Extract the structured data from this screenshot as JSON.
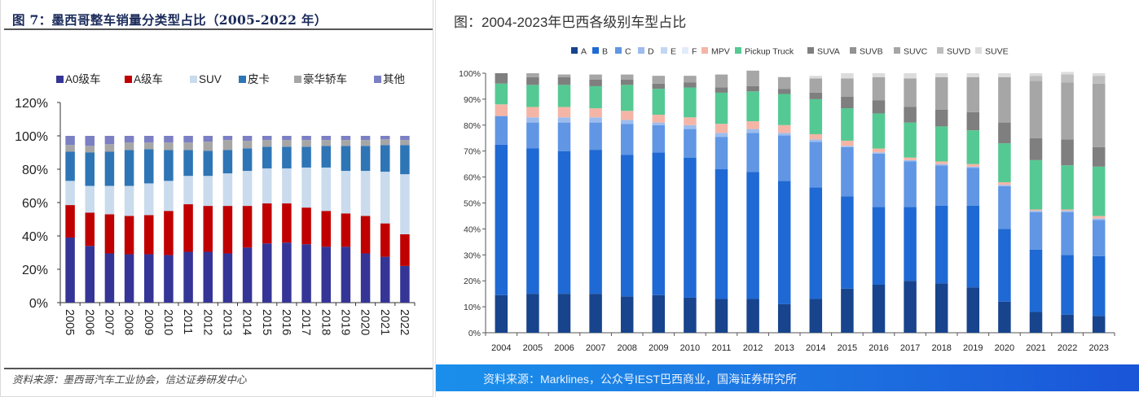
{
  "left_panel": {
    "title": "图 7：墨西哥整车销量分类型占比（2005-2022 年）",
    "source": "资料来源：墨西哥汽车工业协会，信达证券研发中心"
  },
  "right_panel": {
    "title": "图：2004-2023年巴西各级别车型占比",
    "source": "资料来源：Marklines，公众号IEST巴西商业，国海证券研究所"
  },
  "chart_data": [
    {
      "type": "bar",
      "stacked": true,
      "title": "墨西哥整车销量分类型占比（2005-2022 年）",
      "xlabel": "",
      "ylabel": "",
      "ylim": [
        0,
        120
      ],
      "yticks": [
        "0%",
        "20%",
        "40%",
        "60%",
        "80%",
        "100%",
        "120%"
      ],
      "ytick_values": [
        0,
        20,
        40,
        60,
        80,
        100,
        120
      ],
      "legend_position": "top",
      "categories": [
        "2005",
        "2006",
        "2007",
        "2008",
        "2009",
        "2010",
        "2011",
        "2012",
        "2013",
        "2014",
        "2015",
        "2016",
        "2017",
        "2018",
        "2019",
        "2020",
        "2021",
        "2022"
      ],
      "series": [
        {
          "name": "A0级车",
          "color": "#353597",
          "values": [
            39,
            34,
            29.5,
            29,
            29,
            28.5,
            30.5,
            30.5,
            29.5,
            33,
            35.5,
            36,
            35,
            33.5,
            33.5,
            29.5,
            27.5,
            22
          ]
        },
        {
          "name": "A级车",
          "color": "#c00000",
          "values": [
            19.5,
            20,
            23.5,
            23,
            23.5,
            26.5,
            28.5,
            27.5,
            28.5,
            25,
            24,
            23.5,
            22,
            21.5,
            20,
            22.5,
            20,
            19
          ]
        },
        {
          "name": "SUV",
          "color": "#c9dbed",
          "values": [
            14.5,
            16,
            17,
            18,
            19,
            18,
            17,
            18,
            19.5,
            21,
            21,
            21,
            24,
            26,
            25.5,
            27,
            31,
            36
          ]
        },
        {
          "name": "皮卡",
          "color": "#2e75b6",
          "values": [
            17.5,
            20,
            20.5,
            21.5,
            20.5,
            18.5,
            15.5,
            15,
            14,
            13.5,
            13,
            13,
            12.5,
            13,
            15,
            15,
            16,
            17.5
          ]
        },
        {
          "name": "豪华轿车",
          "color": "#a6a6a6",
          "values": [
            4,
            4,
            4.5,
            4.5,
            4,
            4.5,
            4.5,
            5.5,
            6,
            4.5,
            4,
            4,
            4,
            3.5,
            3.5,
            3.5,
            3.5,
            3
          ]
        },
        {
          "name": "其他",
          "color": "#7b7fc4",
          "values": [
            5.5,
            6,
            5,
            4,
            4,
            4,
            4,
            3.5,
            2.5,
            3,
            2.5,
            2.5,
            2.5,
            2.5,
            2.5,
            2.5,
            2,
            2.5
          ]
        }
      ]
    },
    {
      "type": "bar",
      "stacked": true,
      "title": "2004-2023年巴西各级别车型占比",
      "xlabel": "",
      "ylabel": "",
      "ylim": [
        0,
        100
      ],
      "yticks": [
        "0%",
        "10%",
        "20%",
        "30%",
        "40%",
        "50%",
        "60%",
        "70%",
        "80%",
        "90%",
        "100%"
      ],
      "ytick_values": [
        0,
        10,
        20,
        30,
        40,
        50,
        60,
        70,
        80,
        90,
        100
      ],
      "legend_position": "top",
      "categories": [
        "2004",
        "2005",
        "2006",
        "2007",
        "2008",
        "2009",
        "2010",
        "2011",
        "2012",
        "2013",
        "2014",
        "2015",
        "2016",
        "2017",
        "2018",
        "2019",
        "2020",
        "2021",
        "2022",
        "2023"
      ],
      "series": [
        {
          "name": "A",
          "color": "#17448c",
          "values": [
            14.5,
            15,
            15,
            15,
            14,
            14.5,
            13.5,
            13,
            13,
            11,
            13,
            17,
            18.5,
            20,
            19,
            17.5,
            12,
            8,
            7,
            6.5
          ]
        },
        {
          "name": "B",
          "color": "#1f69d4",
          "values": [
            58,
            56,
            55,
            55.5,
            54.5,
            55,
            54,
            50,
            49,
            47.5,
            43,
            35.5,
            30,
            28.5,
            30,
            31.5,
            28,
            24,
            23,
            23
          ]
        },
        {
          "name": "C",
          "color": "#6096e4",
          "values": [
            11,
            10,
            11,
            10.5,
            12,
            10.5,
            11,
            12.5,
            15,
            17.5,
            17.5,
            19,
            20.5,
            17.5,
            15.5,
            14.5,
            16.5,
            14.5,
            16.5,
            14
          ]
        },
        {
          "name": "D",
          "color": "#9cbcee",
          "values": [
            0,
            2,
            2,
            2,
            1.5,
            1,
            1.5,
            1.5,
            1.5,
            1,
            1,
            0.5,
            0.5,
            0.5,
            0.5,
            0.5,
            0.5,
            0.5,
            0.5,
            0.5
          ]
        },
        {
          "name": "E",
          "color": "#c3d6f3",
          "values": [
            0,
            0,
            0,
            0,
            0,
            0,
            0,
            0,
            0,
            0,
            0,
            0,
            0,
            0,
            0,
            0,
            0,
            0,
            0,
            0
          ]
        },
        {
          "name": "F",
          "color": "#e3ecf9",
          "values": [
            0,
            0,
            0,
            0,
            0,
            0,
            0,
            0,
            0,
            0,
            0,
            0,
            0,
            0,
            0,
            0,
            0,
            0,
            0,
            0
          ]
        },
        {
          "name": "MPV",
          "color": "#f5b5a6",
          "values": [
            4.5,
            4,
            4,
            3.5,
            3.5,
            3,
            3,
            3.5,
            3,
            3,
            2,
            2,
            1.5,
            1,
            1,
            1,
            1,
            0.5,
            0.5,
            1
          ]
        },
        {
          "name": "Pickup Truck",
          "color": "#55c993",
          "values": [
            8,
            8.5,
            8.5,
            8.5,
            10,
            10,
            11.5,
            12,
            11.5,
            12,
            13.5,
            12.5,
            13.5,
            13.5,
            13.5,
            13,
            15,
            19,
            17,
            19
          ]
        },
        {
          "name": "SUVA",
          "color": "#7f7f7f",
          "values": [
            4,
            3,
            3,
            2.5,
            2,
            2,
            2,
            2,
            2,
            2,
            2.5,
            4.5,
            5,
            6,
            6.5,
            7,
            8,
            8.5,
            10,
            7.5
          ]
        },
        {
          "name": "SUVB",
          "color": "#929292",
          "values": [
            0,
            0,
            0,
            0,
            0,
            0,
            0,
            0,
            0,
            0,
            0,
            0,
            0,
            0,
            0,
            0,
            0,
            0,
            0,
            0
          ]
        },
        {
          "name": "SUVC",
          "color": "#a6a6a6",
          "values": [
            0,
            1.5,
            1,
            2,
            2,
            3,
            2.5,
            5,
            6,
            4.5,
            5.5,
            7,
            9,
            11,
            12.5,
            13.5,
            17.5,
            22,
            22,
            24.5
          ]
        },
        {
          "name": "SUVD",
          "color": "#bebebe",
          "values": [
            0,
            0,
            0,
            0,
            0,
            0,
            0,
            0,
            0,
            0,
            0,
            0,
            0,
            0,
            0,
            0,
            0,
            2,
            3,
            3
          ]
        },
        {
          "name": "SUVE",
          "color": "#dcdcdc",
          "values": [
            0,
            0,
            0,
            0,
            0,
            0,
            0,
            0,
            0,
            0,
            1,
            2,
            1.5,
            2,
            1.5,
            1.5,
            1.5,
            1,
            1,
            1
          ]
        }
      ]
    }
  ]
}
